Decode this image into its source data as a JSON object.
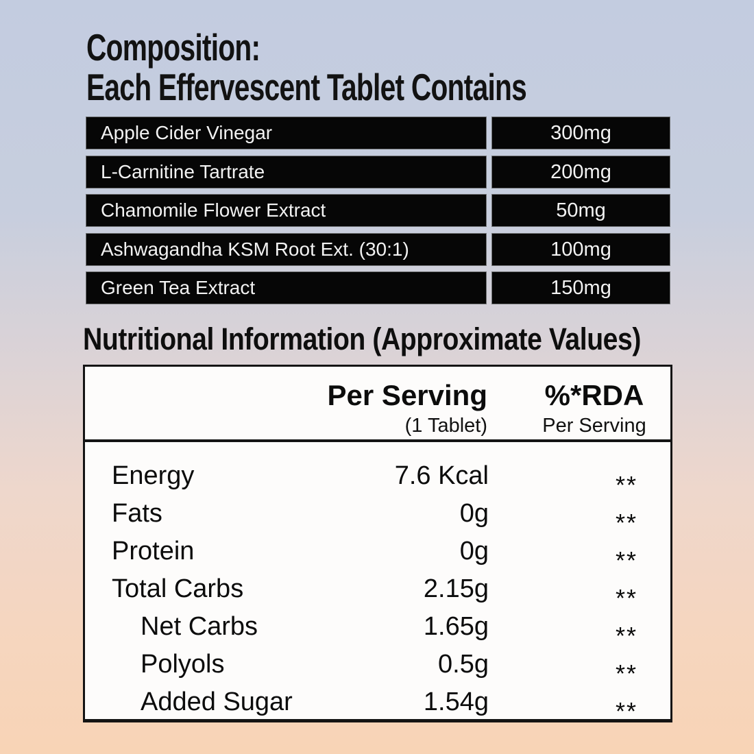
{
  "page": {
    "title_line1": "Composition:",
    "title_line2": "Each Effervescent Tablet Contains"
  },
  "composition_table": {
    "rows": [
      {
        "ingredient": "Apple Cider Vinegar",
        "amount": "300mg"
      },
      {
        "ingredient": "L-Carnitine Tartrate",
        "amount": "200mg"
      },
      {
        "ingredient": "Chamomile Flower Extract",
        "amount": "50mg"
      },
      {
        "ingredient": "Ashwagandha KSM Root Ext. (30:1)",
        "amount": "100mg"
      },
      {
        "ingredient": "Green Tea Extract",
        "amount": "150mg"
      }
    ]
  },
  "nutrition": {
    "heading": "Nutritional Information (Approximate Values)",
    "serving_header": "Per Serving",
    "serving_subheader": "(1 Tablet)",
    "rda_header": "%*RDA",
    "rda_subheader": "Per Serving",
    "rows": [
      {
        "label": "Energy",
        "value": "7.6 Kcal",
        "rda": "**",
        "indent": false
      },
      {
        "label": "Fats",
        "value": "0g",
        "rda": "**",
        "indent": false
      },
      {
        "label": "Protein",
        "value": "0g",
        "rda": "**",
        "indent": false
      },
      {
        "label": "Total Carbs",
        "value": "2.15g",
        "rda": "**",
        "indent": false
      },
      {
        "label": "Net Carbs",
        "value": "1.65g",
        "rda": "**",
        "indent": true
      },
      {
        "label": "Polyols",
        "value": "0.5g",
        "rda": "**",
        "indent": true
      },
      {
        "label": "Added Sugar",
        "value": "1.54g",
        "rda": "**",
        "indent": true
      }
    ]
  },
  "colors": {
    "bg_top": "#c3cce0",
    "bg_bottom": "#f8d4b6",
    "composition_row_bg": "#060606",
    "composition_row_text": "#f2f2f2",
    "nutrition_table_bg": "#fdfcfb",
    "border_black": "#141414"
  }
}
